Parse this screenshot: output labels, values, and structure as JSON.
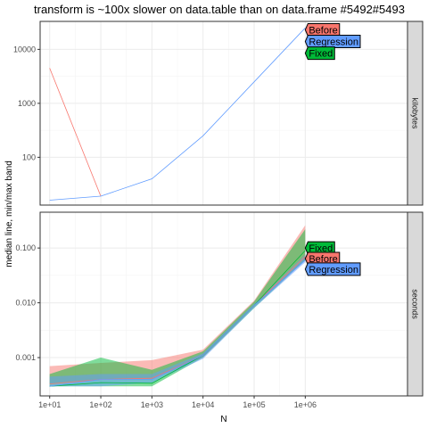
{
  "chart_data": {
    "type": "line",
    "title": "transform is ~100x slower on data.table than on data.frame #5492#5493",
    "xlabel": "N",
    "ylabel": "median line, min/max band",
    "x_scale": "log10",
    "x_ticks": [
      "1e+01",
      "1e+02",
      "1e+03",
      "1e+04",
      "1e+05",
      "1e+06"
    ],
    "x_tick_values": [
      10,
      100,
      1000,
      10000,
      100000,
      1000000
    ],
    "xlim": [
      6.5,
      100000000
    ],
    "grid": true,
    "legend": "direct-labels",
    "series_colors": {
      "Before": "#f8766d",
      "Fixed": "#00ba38",
      "Regression": "#619cff"
    },
    "panels": [
      {
        "strip": "kilobytes",
        "y_scale": "log10",
        "ylim": [
          13,
          33000
        ],
        "y_ticks": [
          "100",
          "1000",
          "10000"
        ],
        "y_tick_values": [
          100,
          1000,
          10000
        ],
        "series": [
          {
            "name": "Before",
            "x": [
              10,
              100
            ],
            "median": [
              4500,
              19
            ],
            "min": [
              4500,
              19
            ],
            "max": [
              4500,
              19
            ]
          },
          {
            "name": "Regression",
            "x": [
              10,
              100,
              1000,
              10000,
              100000,
              1000000
            ],
            "median": [
              16,
              19,
              40,
              250,
              2500,
              25000
            ],
            "min": [
              16,
              19,
              40,
              250,
              2500,
              25000
            ],
            "max": [
              16,
              19,
              40,
              250,
              2500,
              25000
            ]
          },
          {
            "name": "Fixed",
            "x": [
              1000000
            ],
            "median": [
              25000
            ],
            "min": [
              25000
            ],
            "max": [
              25000
            ]
          }
        ],
        "direct_labels": [
          {
            "name": "Before",
            "x": 1000000,
            "y": 23000
          },
          {
            "name": "Regression",
            "x": 1000000,
            "y": 14000
          },
          {
            "name": "Fixed",
            "x": 1000000,
            "y": 8500
          }
        ]
      },
      {
        "strip": "seconds",
        "y_scale": "log10",
        "ylim": [
          0.0002,
          0.45
        ],
        "y_ticks": [
          "0.001",
          "0.010",
          "0.100"
        ],
        "y_tick_values": [
          0.001,
          0.01,
          0.1
        ],
        "series": [
          {
            "name": "Before",
            "x": [
              10,
              100,
              1000,
              10000,
              100000,
              1000000
            ],
            "median": [
              0.00033,
              0.0004,
              0.00042,
              0.0011,
              0.009,
              0.07
            ],
            "min": [
              0.00033,
              0.0004,
              0.0004,
              0.001,
              0.0085,
              0.06
            ],
            "max": [
              0.0007,
              0.0008,
              0.0009,
              0.0014,
              0.011,
              0.26
            ]
          },
          {
            "name": "Fixed",
            "x": [
              10,
              100,
              1000,
              10000,
              100000,
              1000000
            ],
            "median": [
              0.0003,
              0.00035,
              0.00034,
              0.0011,
              0.009,
              0.09
            ],
            "min": [
              0.0003,
              0.0003,
              0.0003,
              0.001,
              0.008,
              0.06
            ],
            "max": [
              0.0005,
              0.001,
              0.0006,
              0.0013,
              0.0105,
              0.22
            ]
          },
          {
            "name": "Regression",
            "x": [
              10,
              100,
              1000,
              10000,
              100000,
              1000000
            ],
            "median": [
              0.0003,
              0.0004,
              0.0004,
              0.0011,
              0.009,
              0.06
            ],
            "min": [
              0.0003,
              0.0003,
              0.00035,
              0.00095,
              0.008,
              0.055
            ],
            "max": [
              0.00045,
              0.0005,
              0.0005,
              0.0012,
              0.0095,
              0.075
            ]
          }
        ],
        "direct_labels": [
          {
            "name": "Fixed",
            "x": 1000000,
            "y": 0.1
          },
          {
            "name": "Before",
            "x": 1000000,
            "y": 0.064
          },
          {
            "name": "Regression",
            "x": 1000000,
            "y": 0.041
          }
        ]
      }
    ]
  }
}
